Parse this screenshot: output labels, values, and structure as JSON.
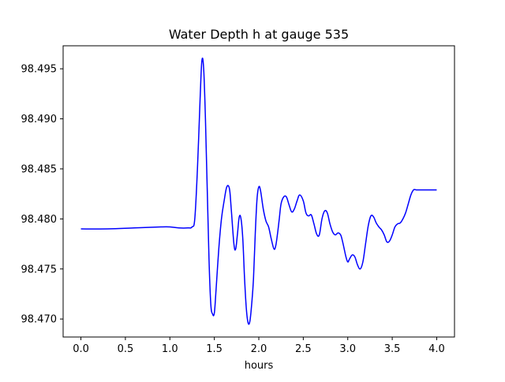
{
  "chart_data": {
    "type": "line",
    "title": "Water Depth h at gauge 535",
    "xlabel": "hours",
    "ylabel": "",
    "xlim": [
      -0.2,
      4.2
    ],
    "ylim": [
      98.4682,
      98.4973
    ],
    "xticks": [
      0.0,
      0.5,
      1.0,
      1.5,
      2.0,
      2.5,
      3.0,
      3.5,
      4.0
    ],
    "xtick_labels": [
      "0.0",
      "0.5",
      "1.0",
      "1.5",
      "2.0",
      "2.5",
      "3.0",
      "3.5",
      "4.0"
    ],
    "yticks": [
      98.47,
      98.475,
      98.48,
      98.485,
      98.49,
      98.495
    ],
    "ytick_labels": [
      "98.470",
      "98.475",
      "98.480",
      "98.485",
      "98.490",
      "98.495"
    ],
    "grid": false,
    "line_color": "#0000ff",
    "series": [
      {
        "x": [
          0.0,
          0.3,
          0.6,
          0.9,
          1.0,
          1.1,
          1.2,
          1.25,
          1.28,
          1.31,
          1.34,
          1.36,
          1.38,
          1.4,
          1.42,
          1.44,
          1.46,
          1.48,
          1.5,
          1.52,
          1.55,
          1.58,
          1.61,
          1.64,
          1.67,
          1.69,
          1.72,
          1.74,
          1.76,
          1.78,
          1.8,
          1.82,
          1.84,
          1.86,
          1.88,
          1.9,
          1.92,
          1.94,
          1.96,
          1.98,
          2.0,
          2.02,
          2.05,
          2.08,
          2.11,
          2.14,
          2.17,
          2.19,
          2.21,
          2.23,
          2.25,
          2.28,
          2.31,
          2.34,
          2.37,
          2.4,
          2.43,
          2.46,
          2.5,
          2.53,
          2.56,
          2.59,
          2.62,
          2.65,
          2.68,
          2.71,
          2.74,
          2.77,
          2.8,
          2.83,
          2.86,
          2.89,
          2.92,
          2.94,
          2.96,
          2.98,
          3.0,
          3.02,
          3.05,
          3.08,
          3.11,
          3.14,
          3.17,
          3.2,
          3.23,
          3.26,
          3.29,
          3.32,
          3.35,
          3.38,
          3.41,
          3.44,
          3.47,
          3.5,
          3.53,
          3.56,
          3.59,
          3.62,
          3.65,
          3.68,
          3.71,
          3.74,
          3.77,
          3.8,
          3.83,
          3.86,
          3.89,
          3.92,
          3.95,
          3.98,
          4.0
        ],
        "y": [
          98.479,
          98.479,
          98.4791,
          98.4792,
          98.4792,
          98.4791,
          98.4791,
          98.4792,
          98.48,
          98.485,
          98.492,
          98.4958,
          98.495,
          98.49,
          98.483,
          98.476,
          98.4715,
          98.4705,
          98.4706,
          98.473,
          98.477,
          98.48,
          98.4818,
          98.4832,
          98.483,
          98.481,
          98.4775,
          98.477,
          98.4785,
          98.4802,
          98.48,
          98.478,
          98.474,
          98.471,
          98.4696,
          98.4698,
          98.4715,
          98.474,
          98.4785,
          98.482,
          98.4832,
          98.4828,
          98.481,
          98.4798,
          98.4792,
          98.478,
          98.477,
          98.4773,
          98.4785,
          98.48,
          98.4815,
          98.4822,
          98.4822,
          98.4814,
          98.4807,
          98.481,
          98.4818,
          98.4824,
          98.4818,
          98.4806,
          98.4803,
          98.4804,
          98.4795,
          98.4785,
          98.4784,
          98.48,
          98.4808,
          98.4806,
          98.4795,
          98.4787,
          98.4784,
          98.4786,
          98.4784,
          98.4778,
          98.477,
          98.4762,
          98.4757,
          98.476,
          98.4764,
          98.4762,
          98.4754,
          98.475,
          98.4757,
          98.4775,
          98.4793,
          98.4803,
          98.4802,
          98.4796,
          98.4792,
          98.4789,
          98.4784,
          98.4777,
          98.4778,
          98.4784,
          98.4792,
          98.4795,
          98.4796,
          98.48,
          98.4806,
          98.4815,
          98.4824,
          98.4829,
          98.4829,
          98.4829,
          98.4829,
          98.4829,
          98.4829,
          98.4829,
          98.4829,
          98.4829,
          98.4829
        ]
      }
    ]
  }
}
